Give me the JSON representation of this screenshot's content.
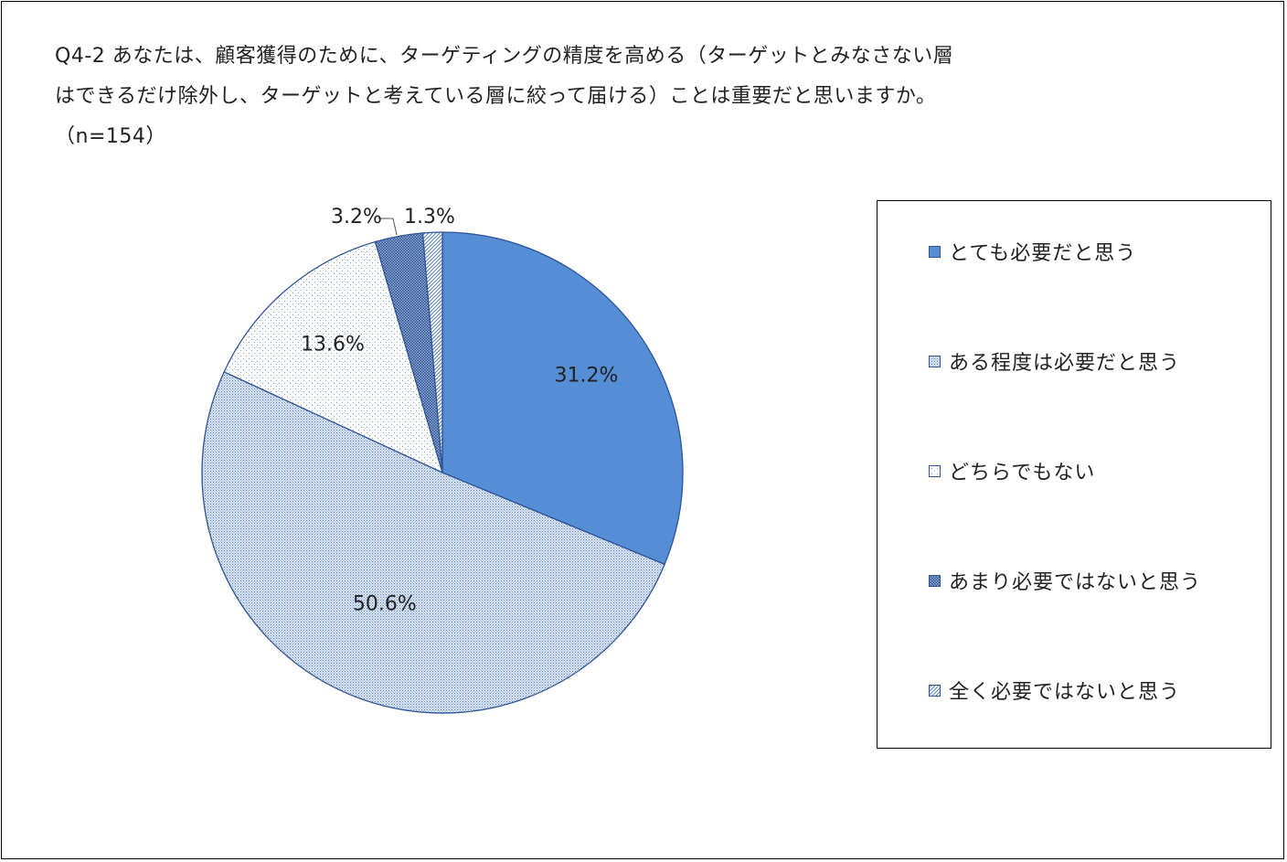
{
  "title": {
    "line1": "Q4-2 あなたは、顧客獲得のために、ターゲティングの精度を高める（ターゲットとみなさない層",
    "line2": "はできるだけ除外し、ターゲットと考えている層に絞って届ける）ことは重要だと思いますか。",
    "line3": "（n=154）"
  },
  "chart_data": {
    "type": "pie",
    "title": "Q4-2 あなたは、顧客獲得のために、ターゲティングの精度を高める（ターゲットとみなさない層はできるだけ除外し、ターゲットと考えている層に絞って届ける）ことは重要だと思いますか。",
    "subtitle": "（n=154）",
    "categories": [
      "とても必要だと思う",
      "ある程度は必要だと思う",
      "どちらでもない",
      "あまり必要ではないと思う",
      "全く必要ではないと思う"
    ],
    "values": [
      31.2,
      50.6,
      13.6,
      3.2,
      1.3
    ],
    "data_labels": [
      "31.2%",
      "50.6%",
      "13.6%",
      "3.2%",
      "1.3%"
    ],
    "colors": [
      "#558ED5",
      "#C9D7EC",
      "#FFFFFF",
      "#5B82B4",
      "#FFFFFF"
    ],
    "patterns": [
      "solid",
      "fine-dots",
      "sparse-dots",
      "crosshatch",
      "diagonal"
    ],
    "start_angle_deg": 0,
    "direction": "clockwise",
    "legend_position": "right"
  }
}
